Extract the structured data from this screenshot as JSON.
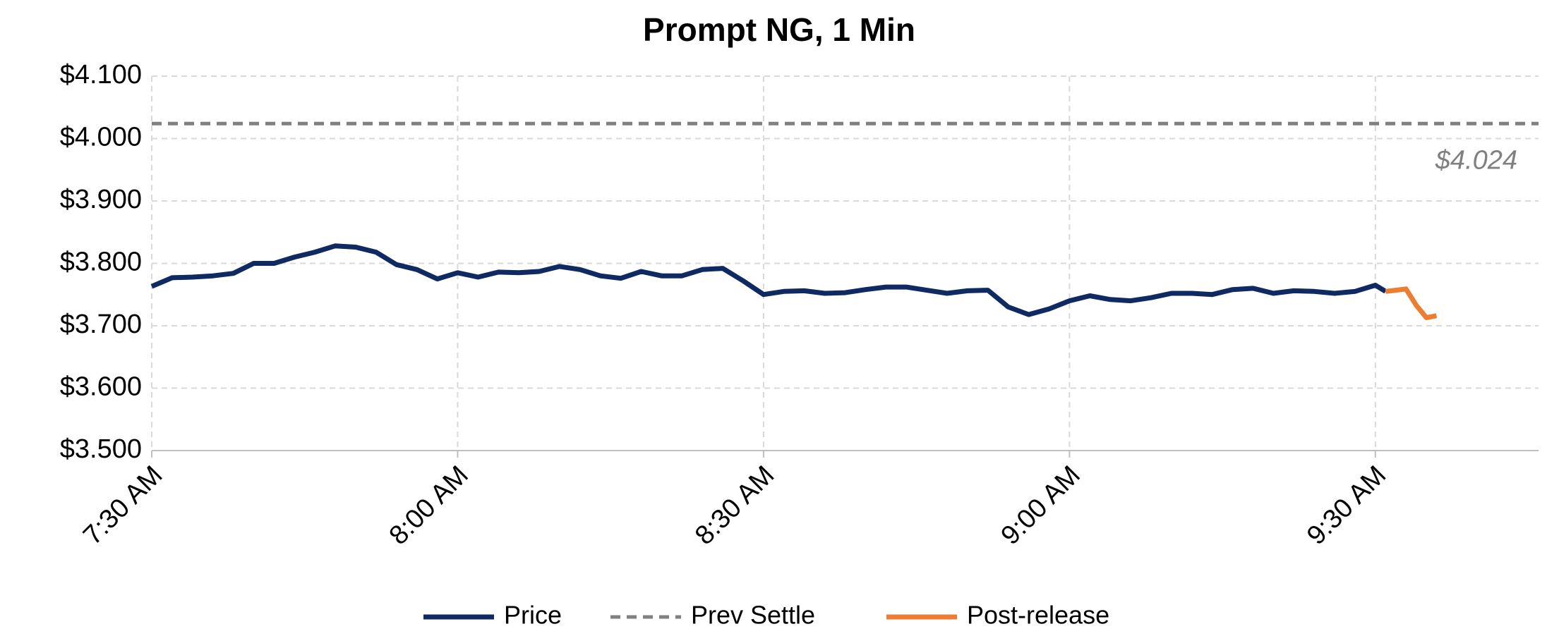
{
  "chart_data": {
    "type": "line",
    "title": "Prompt NG, 1 Min",
    "xlim": [
      "7:30 AM",
      "9:46 AM"
    ],
    "xticks": [
      "7:30 AM",
      "8:00 AM",
      "8:30 AM",
      "9:00 AM",
      "9:30 AM"
    ],
    "ylim": [
      3.5,
      4.1
    ],
    "yticks": [
      {
        "value": 3.5,
        "label": "$3.500"
      },
      {
        "value": 3.6,
        "label": "$3.600"
      },
      {
        "value": 3.7,
        "label": "$3.700"
      },
      {
        "value": 3.8,
        "label": "$3.800"
      },
      {
        "value": 3.9,
        "label": "$3.900"
      },
      {
        "value": 4.0,
        "label": "$4.000"
      },
      {
        "value": 4.1,
        "label": "$4.100"
      }
    ],
    "grid": true,
    "legend": "bottom",
    "series": [
      {
        "name": "Price",
        "color": "#0f2a63",
        "dashed": false,
        "x": [
          "7:30 AM",
          "7:32 AM",
          "7:34 AM",
          "7:36 AM",
          "7:38 AM",
          "7:40 AM",
          "7:42 AM",
          "7:44 AM",
          "7:46 AM",
          "7:48 AM",
          "7:50 AM",
          "7:52 AM",
          "7:54 AM",
          "7:56 AM",
          "7:58 AM",
          "8:00 AM",
          "8:02 AM",
          "8:04 AM",
          "8:06 AM",
          "8:08 AM",
          "8:10 AM",
          "8:12 AM",
          "8:14 AM",
          "8:16 AM",
          "8:18 AM",
          "8:20 AM",
          "8:22 AM",
          "8:24 AM",
          "8:26 AM",
          "8:28 AM",
          "8:30 AM",
          "8:32 AM",
          "8:34 AM",
          "8:36 AM",
          "8:38 AM",
          "8:40 AM",
          "8:42 AM",
          "8:44 AM",
          "8:46 AM",
          "8:48 AM",
          "8:50 AM",
          "8:52 AM",
          "8:54 AM",
          "8:56 AM",
          "8:58 AM",
          "9:00 AM",
          "9:02 AM",
          "9:04 AM",
          "9:06 AM",
          "9:08 AM",
          "9:10 AM",
          "9:12 AM",
          "9:14 AM",
          "9:16 AM",
          "9:18 AM",
          "9:20 AM",
          "9:22 AM",
          "9:24 AM",
          "9:26 AM",
          "9:28 AM",
          "9:30 AM",
          "9:31 AM"
        ],
        "values": [
          3.763,
          3.777,
          3.778,
          3.78,
          3.784,
          3.8,
          3.8,
          3.81,
          3.818,
          3.828,
          3.826,
          3.818,
          3.798,
          3.79,
          3.775,
          3.785,
          3.778,
          3.786,
          3.785,
          3.787,
          3.795,
          3.79,
          3.78,
          3.776,
          3.787,
          3.78,
          3.78,
          3.79,
          3.792,
          3.772,
          3.75,
          3.755,
          3.756,
          3.752,
          3.753,
          3.758,
          3.762,
          3.762,
          3.757,
          3.752,
          3.756,
          3.757,
          3.73,
          3.718,
          3.727,
          3.74,
          3.748,
          3.742,
          3.74,
          3.745,
          3.752,
          3.752,
          3.75,
          3.758,
          3.76,
          3.752,
          3.756,
          3.755,
          3.752,
          3.755,
          3.765,
          3.755
        ]
      },
      {
        "name": "Prev Settle",
        "color": "#808080",
        "dashed": true,
        "x": [
          "7:30 AM",
          "9:46 AM"
        ],
        "values": [
          4.024,
          4.024
        ]
      },
      {
        "name": "Post-release",
        "color": "#ed7d31",
        "dashed": false,
        "x": [
          "9:31 AM",
          "9:32 AM",
          "9:33 AM",
          "9:34 AM",
          "9:35 AM",
          "9:36 AM"
        ],
        "values": [
          3.755,
          3.757,
          3.759,
          3.733,
          3.713,
          3.716
        ]
      }
    ],
    "annotation": "$4.024"
  }
}
